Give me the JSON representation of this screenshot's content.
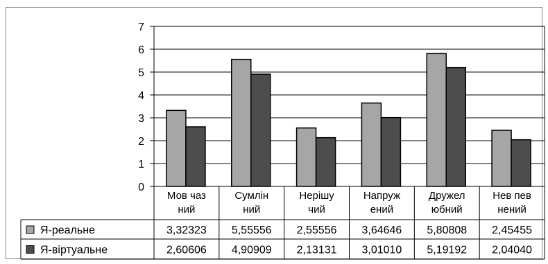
{
  "chart_data": {
    "type": "bar",
    "categories": [
      [
        "Мов чаз",
        "ний"
      ],
      [
        "Сумлін",
        "ний"
      ],
      [
        "Нерішу",
        "чий"
      ],
      [
        "Напруж",
        "ений"
      ],
      [
        "Дружел",
        "юбний"
      ],
      [
        "Нев пев",
        "нений"
      ]
    ],
    "series": [
      {
        "name": "Я-реальне",
        "values": [
          3.32323,
          5.55556,
          2.55556,
          3.64646,
          5.80808,
          2.45455
        ],
        "labels": [
          "3,32323",
          "5,55556",
          "2,55556",
          "3,64646",
          "5,80808",
          "2,45455"
        ],
        "color": "#a6a6a6"
      },
      {
        "name": "Я-віртуальне",
        "values": [
          2.60606,
          4.90909,
          2.13131,
          3.0101,
          5.19192,
          2.0404
        ],
        "labels": [
          "2,60606",
          "4,90909",
          "2,13131",
          "3,01010",
          "5,19192",
          "2,04040"
        ],
        "color": "#4d4d4d"
      }
    ],
    "ylim": [
      0,
      7
    ],
    "yticks": [
      "0",
      "1",
      "2",
      "3",
      "4",
      "5",
      "6",
      "7"
    ],
    "grid": true,
    "legend": "data-table-left"
  }
}
